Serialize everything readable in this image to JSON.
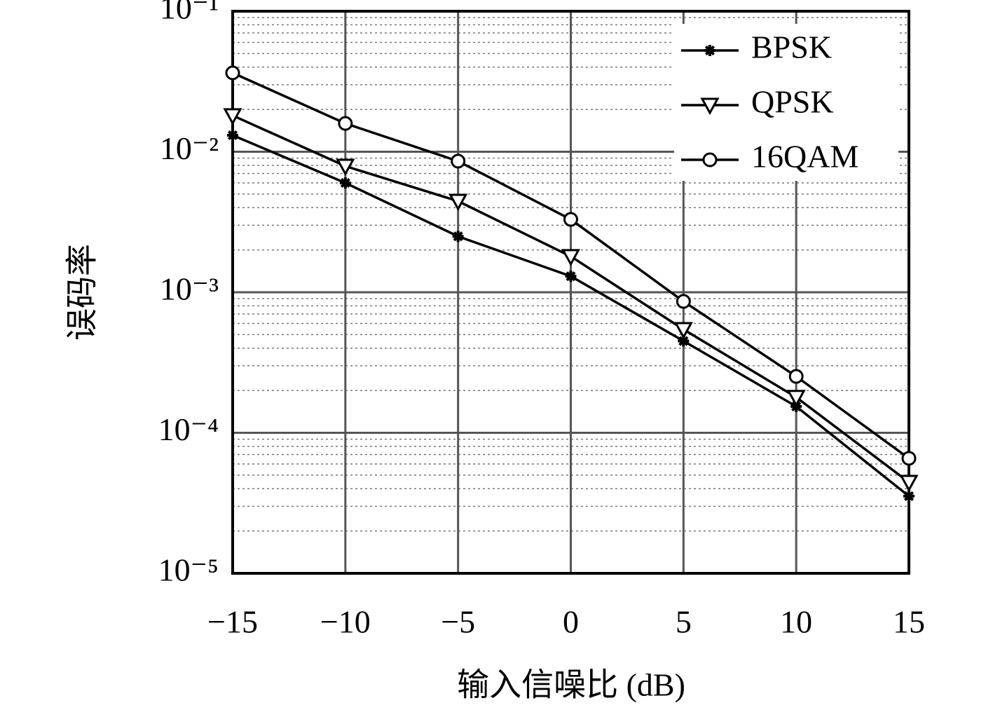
{
  "chart_data": {
    "type": "line",
    "x_label": "输入信噪比 (dB)",
    "y_label": "误码率",
    "x": [
      -15,
      -10,
      -5,
      0,
      5,
      10,
      15
    ],
    "series": [
      {
        "name": "BPSK",
        "color": "#000000",
        "marker": "star",
        "values": [
          0.0131,
          0.006,
          0.0025,
          0.0013,
          0.00045,
          0.000154,
          3.54e-05
        ]
      },
      {
        "name": "QPSK",
        "color": "#000000",
        "marker": "triangle-down",
        "values": [
          0.0181,
          0.0079,
          0.00445,
          0.0018,
          0.000544,
          0.000179,
          4.45e-05
        ]
      },
      {
        "name": "16QAM",
        "color": "#000000",
        "marker": "circle",
        "values": [
          0.0364,
          0.0159,
          0.00857,
          0.0033,
          0.000861,
          0.000252,
          6.58e-05
        ]
      }
    ],
    "xlim": [
      -15,
      15
    ],
    "xticks": [
      {
        "value": -15,
        "label": "−15"
      },
      {
        "value": -10,
        "label": "−10"
      },
      {
        "value": -5,
        "label": "−5"
      },
      0,
      5,
      10,
      15
    ],
    "ylim": [
      1e-05,
      0.1
    ],
    "ylog": true,
    "yticks": [
      {
        "value": 0.1,
        "label": "10⁻¹"
      },
      {
        "value": 0.01,
        "label": "10⁻²"
      },
      {
        "value": 0.001,
        "label": "10⁻³"
      },
      {
        "value": 0.0001,
        "label": "10⁻⁴"
      },
      {
        "value": 1e-05,
        "label": "10⁻⁵"
      }
    ],
    "grid": true,
    "minor_grid": true,
    "legend_position": "upper right"
  }
}
